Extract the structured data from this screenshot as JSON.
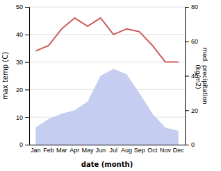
{
  "chart_data": {
    "type": "line",
    "xlabel": "date (month)",
    "ylabel": "max temp (C)",
    "y2label": "med. precipitation\n (kg/m2)",
    "categories": [
      "Jan",
      "Feb",
      "Mar",
      "Apr",
      "May",
      "Jun",
      "Jul",
      "Aug",
      "Sep",
      "Oct",
      "Nov",
      "Dec"
    ],
    "series": [
      {
        "type": "area",
        "axis": "y2",
        "color": "#c5cdf0",
        "values": [
          10,
          15,
          18,
          20,
          25,
          40,
          44,
          41,
          30,
          18,
          10,
          8
        ]
      },
      {
        "type": "line",
        "color": "#cd5c5c",
        "values": [
          34,
          36,
          42,
          46,
          43,
          46,
          40,
          42,
          41,
          36,
          30,
          30
        ]
      }
    ],
    "ylim": [
      0,
      50
    ],
    "yticks": [
      0,
      10,
      20,
      30,
      40,
      50
    ],
    "y2lim": [
      0,
      80
    ],
    "y2ticks": [
      0,
      20,
      40,
      60,
      80
    ],
    "grid": true
  }
}
